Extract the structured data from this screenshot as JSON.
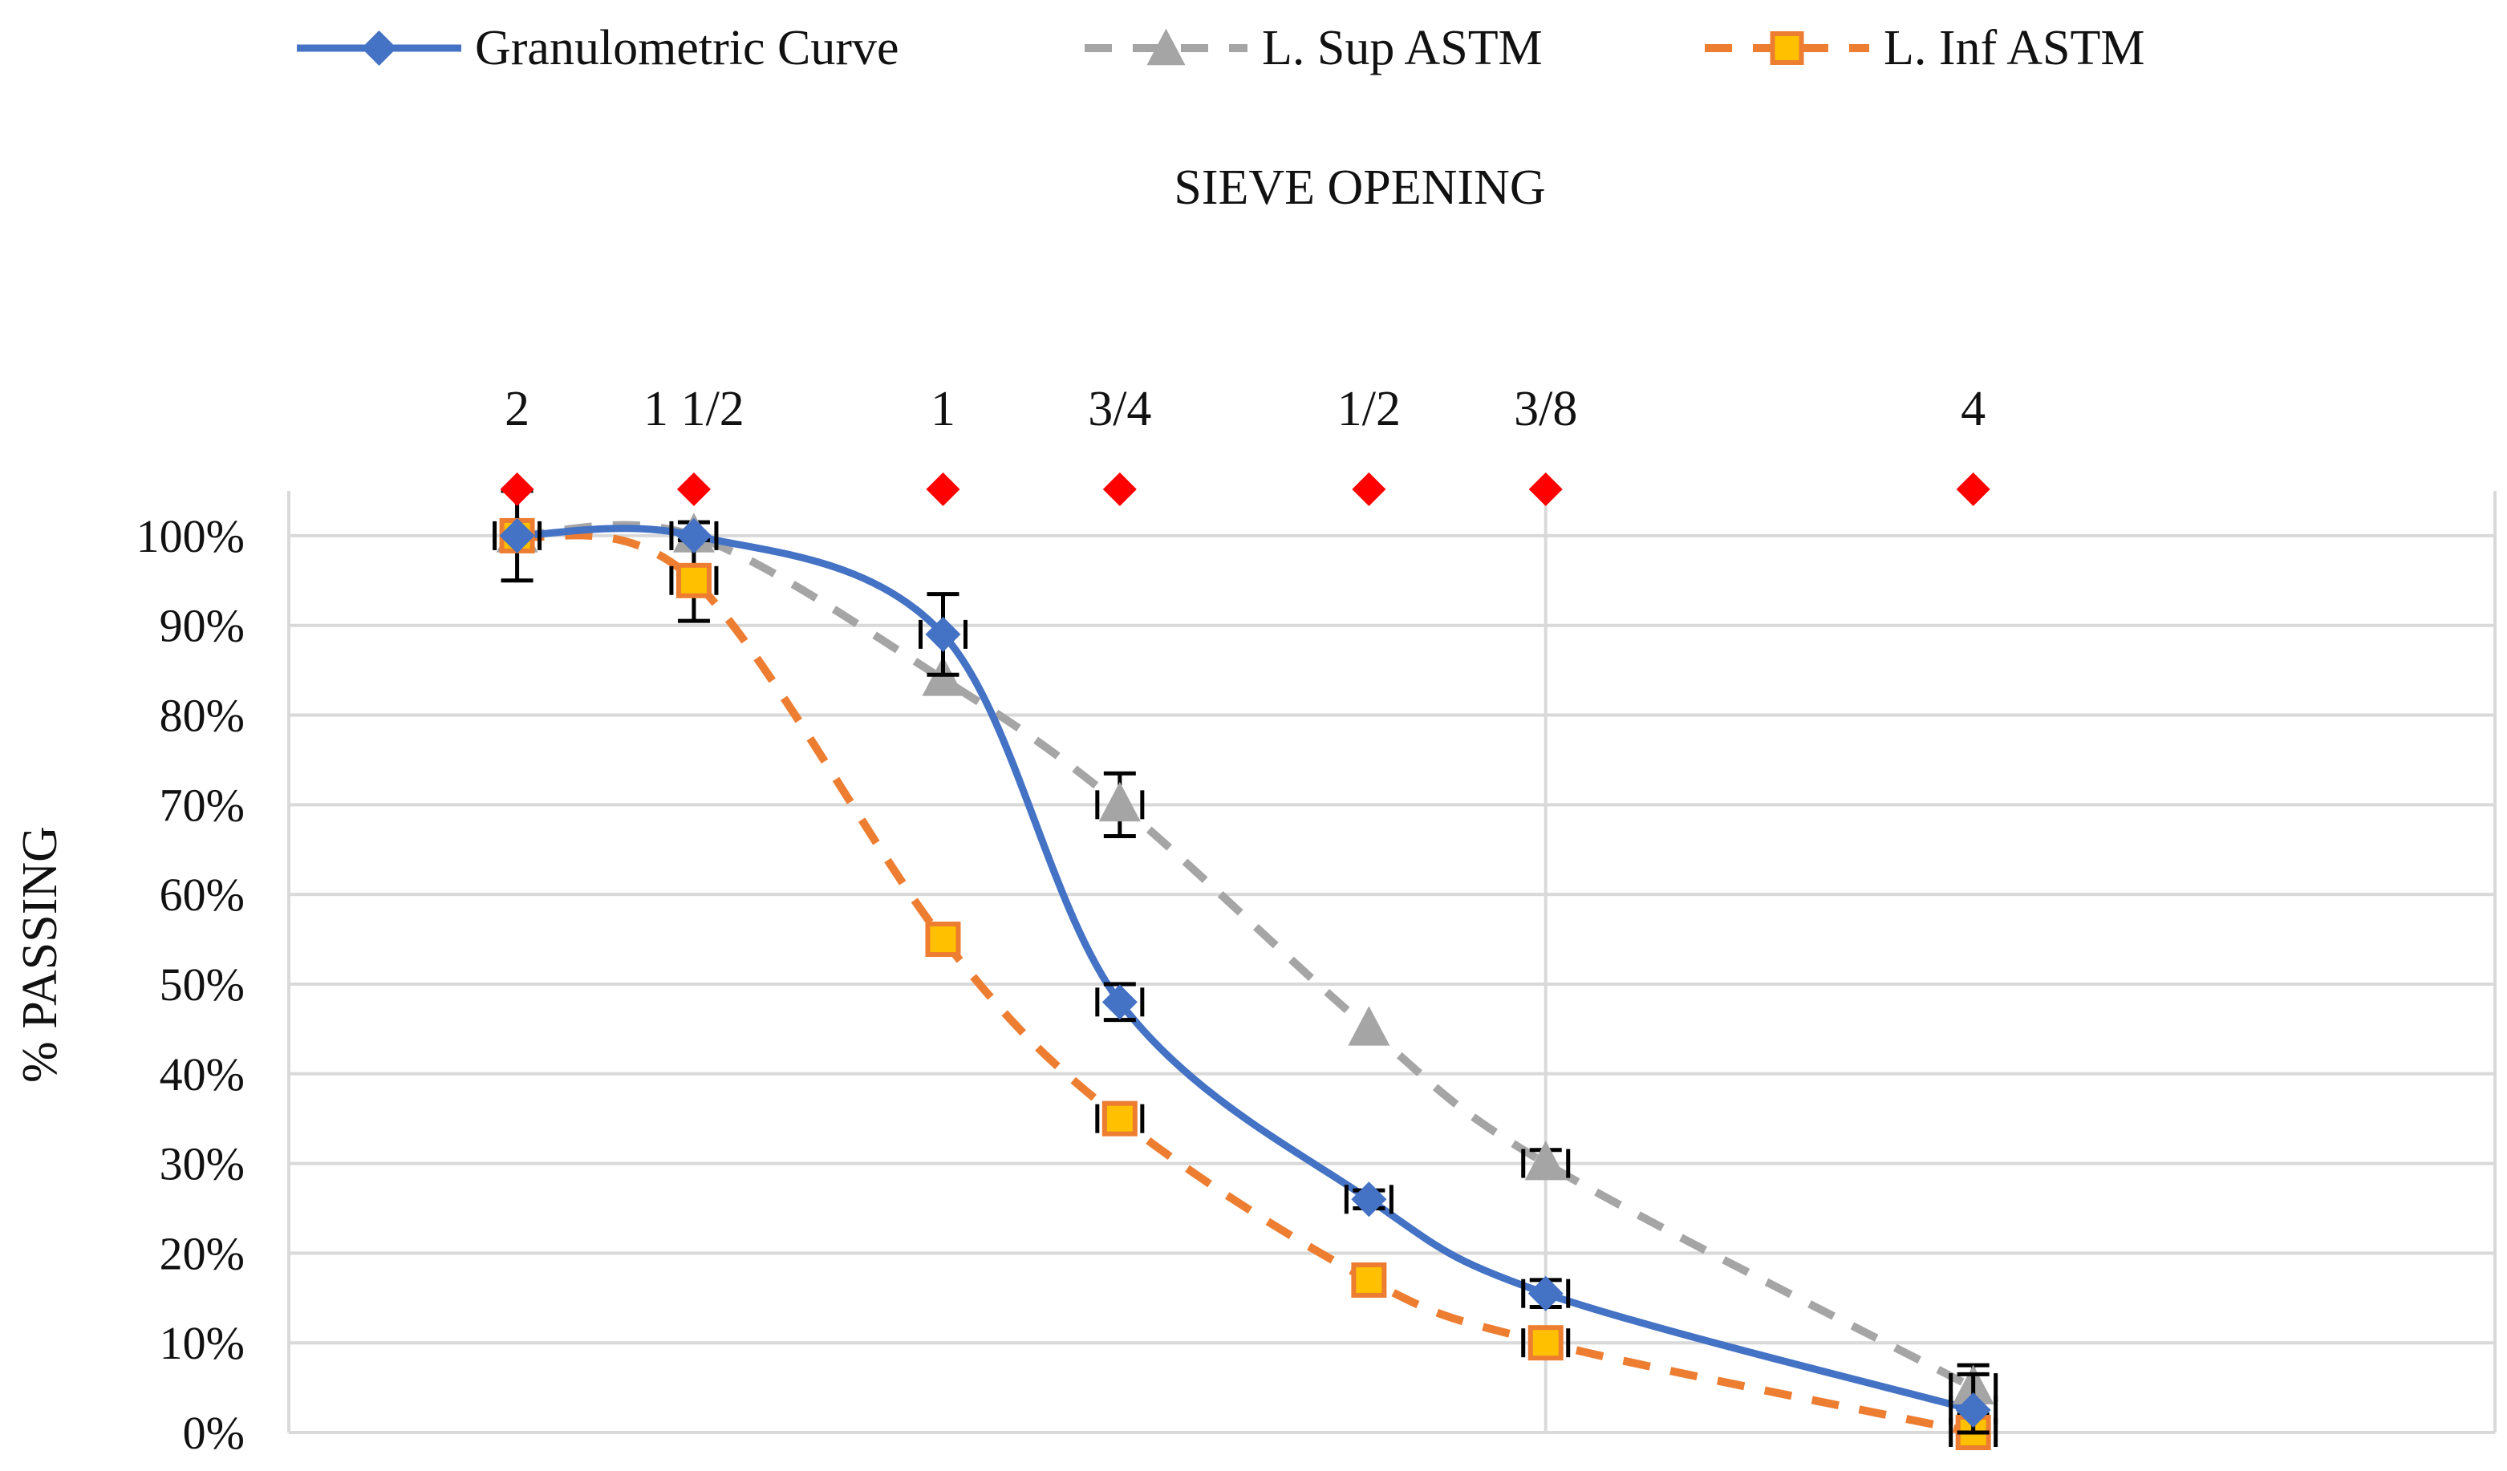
{
  "chart_data": {
    "type": "line",
    "title": "SIEVE OPENING",
    "xlabel": "SIEVE OPENING",
    "ylabel": "% PASSING",
    "ylim": [
      0,
      100
    ],
    "ytick_labels": [
      "0%",
      "10%",
      "20%",
      "30%",
      "40%",
      "50%",
      "60%",
      "70%",
      "80%",
      "90%",
      "100%"
    ],
    "sieves": [
      {
        "label": "2",
        "pos": 2.0
      },
      {
        "label": "1 1/2",
        "pos": 1.5
      },
      {
        "label": "1",
        "pos": 1.0
      },
      {
        "label": "3/4",
        "pos": 0.75
      },
      {
        "label": "1/2",
        "pos": 0.5
      },
      {
        "label": "3/8",
        "pos": 0.375
      },
      {
        "label": "4",
        "pos": 0.187
      }
    ],
    "legend_position": "top",
    "series": [
      {
        "name": "Granulometric Curve",
        "color": "#4472C4",
        "marker": "diamond",
        "dash": "solid",
        "x": [
          2.0,
          1.5,
          1.0,
          0.75,
          0.5,
          0.375,
          0.187
        ],
        "values": [
          100,
          100,
          89,
          48,
          26,
          15.5,
          2.5
        ],
        "error": [
          0,
          0,
          4.5,
          2,
          1,
          1.5,
          4
        ]
      },
      {
        "name": "L. Sup ASTM",
        "color": "#A5A5A5",
        "marker": "triangle",
        "dash": "dashed",
        "x": [
          2.0,
          1.5,
          1.0,
          0.75,
          0.5,
          0.375,
          0.187
        ],
        "values": [
          100,
          100,
          84,
          70,
          45,
          30,
          5
        ],
        "error": [
          0,
          1.5,
          0,
          3.5,
          0,
          1.5,
          2.5
        ]
      },
      {
        "name": "L. Inf ASTM",
        "color": "#ED7D31",
        "marker_fill": "#FFC000",
        "marker": "square",
        "dash": "dashed",
        "x": [
          2.0,
          1.5,
          1.0,
          0.75,
          0.5,
          0.375,
          0.187
        ],
        "values": [
          100,
          95,
          55,
          35,
          17,
          10,
          0
        ],
        "error": [
          5,
          4.5,
          0,
          1.5,
          0,
          1.5,
          2
        ]
      }
    ],
    "sieve_marker_color": "#FF0000"
  }
}
